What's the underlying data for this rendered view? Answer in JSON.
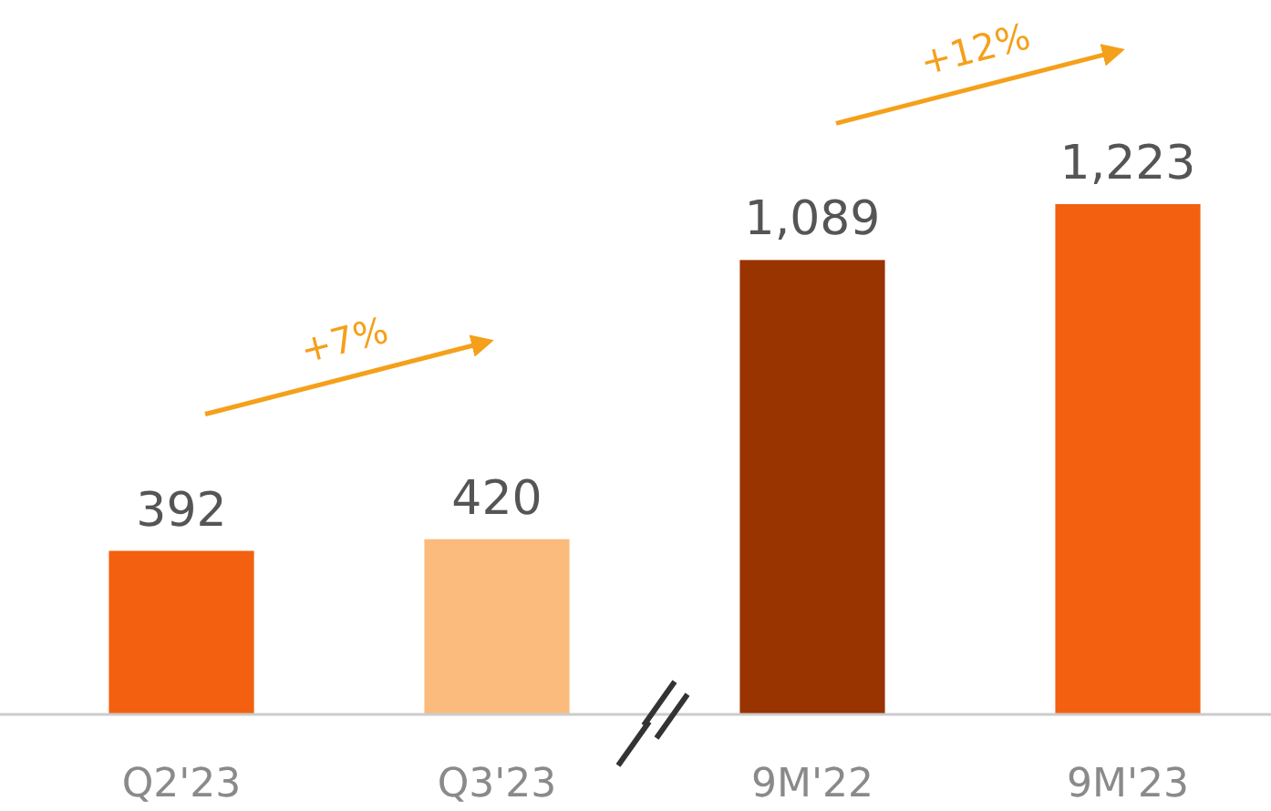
{
  "chart_data": {
    "type": "bar",
    "categories": [
      "Q2'23",
      "Q3'23",
      "9M'22",
      "9M'23"
    ],
    "values": [
      392,
      420,
      1089,
      1223
    ],
    "colors": [
      "#f26010",
      "#fbbb7c",
      "#993300",
      "#f26010"
    ],
    "value_labels": [
      "392",
      "420",
      "1,089",
      "1,223"
    ],
    "annotations": [
      "+7%",
      "+12%"
    ]
  }
}
